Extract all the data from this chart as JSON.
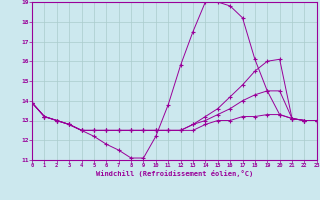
{
  "xlabel": "Windchill (Refroidissement éolien,°C)",
  "xlim": [
    0,
    23
  ],
  "ylim": [
    11,
    19
  ],
  "xticks": [
    0,
    1,
    2,
    3,
    4,
    5,
    6,
    7,
    8,
    9,
    10,
    11,
    12,
    13,
    14,
    15,
    16,
    17,
    18,
    19,
    20,
    21,
    22,
    23
  ],
  "yticks": [
    11,
    12,
    13,
    14,
    15,
    16,
    17,
    18,
    19
  ],
  "line_color": "#990099",
  "bg_color": "#cce8ee",
  "grid_color": "#aacccc",
  "lines": [
    {
      "x": [
        0,
        1,
        2,
        3,
        4,
        5,
        6,
        7,
        8,
        9,
        10,
        11,
        12,
        13,
        14,
        15,
        16,
        17,
        18,
        19,
        20,
        21,
        22,
        23
      ],
      "y": [
        13.9,
        13.2,
        13.0,
        12.8,
        12.5,
        12.2,
        11.8,
        11.5,
        11.1,
        11.1,
        12.2,
        13.8,
        15.8,
        17.5,
        19.0,
        19.0,
        18.8,
        18.2,
        16.1,
        14.5,
        13.3,
        13.1,
        13.0,
        13.0
      ]
    },
    {
      "x": [
        0,
        1,
        2,
        3,
        4,
        5,
        6,
        7,
        8,
        9,
        10,
        11,
        12,
        13,
        14,
        15,
        16,
        17,
        18,
        19,
        20,
        21,
        22,
        23
      ],
      "y": [
        13.9,
        13.2,
        13.0,
        12.8,
        12.5,
        12.5,
        12.5,
        12.5,
        12.5,
        12.5,
        12.5,
        12.5,
        12.5,
        12.8,
        13.2,
        13.6,
        14.2,
        14.8,
        15.5,
        16.0,
        16.1,
        13.1,
        13.0,
        13.0
      ]
    },
    {
      "x": [
        0,
        1,
        2,
        3,
        4,
        5,
        6,
        7,
        8,
        9,
        10,
        11,
        12,
        13,
        14,
        15,
        16,
        17,
        18,
        19,
        20,
        21,
        22,
        23
      ],
      "y": [
        13.9,
        13.2,
        13.0,
        12.8,
        12.5,
        12.5,
        12.5,
        12.5,
        12.5,
        12.5,
        12.5,
        12.5,
        12.5,
        12.8,
        13.0,
        13.3,
        13.6,
        14.0,
        14.3,
        14.5,
        14.5,
        13.1,
        13.0,
        13.0
      ]
    },
    {
      "x": [
        0,
        1,
        2,
        3,
        4,
        5,
        6,
        7,
        8,
        9,
        10,
        11,
        12,
        13,
        14,
        15,
        16,
        17,
        18,
        19,
        20,
        21,
        22,
        23
      ],
      "y": [
        13.9,
        13.2,
        13.0,
        12.8,
        12.5,
        12.5,
        12.5,
        12.5,
        12.5,
        12.5,
        12.5,
        12.5,
        12.5,
        12.5,
        12.8,
        13.0,
        13.0,
        13.2,
        13.2,
        13.3,
        13.3,
        13.1,
        13.0,
        13.0
      ]
    }
  ]
}
